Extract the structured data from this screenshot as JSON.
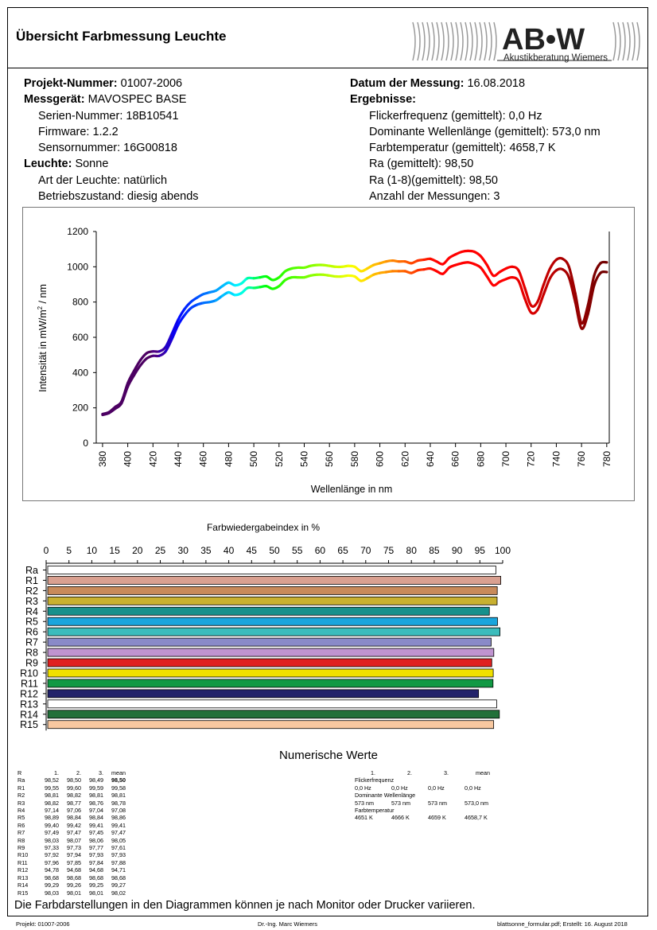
{
  "header": {
    "title": "Übersicht Farbmessung Leuchte",
    "logo_text": "AB•W",
    "logo_subtext": "Akustikberatung Wiemers"
  },
  "info_left": {
    "project_label": "Projekt-Nummer:",
    "project_value": " 01007-2006",
    "device_label": "Messgerät:",
    "device_value": " MAVOSPEC BASE",
    "serial": "Serien-Nummer: 18B10541",
    "firmware": "Firmware: 1.2.2",
    "sensor": "Sensornummer: 16G00818",
    "lamp_label": "Leuchte:",
    "lamp_value": " Sonne",
    "lamp_type": "Art der Leuchte: natürlich",
    "state": "Betriebszustand: diesig abends"
  },
  "info_right": {
    "date_label": "Datum der Messung:",
    "date_value": " 16.08.2018",
    "results_label": "Ergebnisse:",
    "flicker": "Flickerfrequenz (gemittelt): 0,0 Hz",
    "dominant": "Dominante Wellenlänge (gemittelt): 573,0 nm",
    "cct": "Farbtemperatur (gemittelt): 4658,7 K",
    "ra": "Ra (gemittelt): 98,50",
    "ra18": "Ra (1-8)(gemittelt): 98,50",
    "count": "Anzahl der Messungen: 3"
  },
  "chart_data": [
    {
      "type": "line",
      "xlabel": "Wellenlänge in nm",
      "ylabel": "Intensität in mW/m² / nm",
      "xlim": [
        375,
        782
      ],
      "ylim": [
        0,
        1200
      ],
      "xticks": [
        380,
        400,
        420,
        440,
        460,
        480,
        500,
        520,
        540,
        560,
        580,
        600,
        620,
        640,
        660,
        680,
        700,
        720,
        740,
        760,
        780
      ],
      "yticks": [
        0,
        200,
        400,
        600,
        800,
        1000,
        1200
      ],
      "grid": false,
      "x": [
        380,
        385,
        390,
        395,
        400,
        405,
        410,
        415,
        420,
        425,
        430,
        435,
        440,
        445,
        450,
        455,
        460,
        465,
        470,
        475,
        480,
        485,
        490,
        495,
        500,
        505,
        510,
        515,
        520,
        525,
        530,
        535,
        540,
        545,
        550,
        555,
        560,
        565,
        570,
        575,
        580,
        585,
        590,
        595,
        600,
        605,
        610,
        615,
        620,
        625,
        630,
        635,
        640,
        645,
        650,
        655,
        660,
        665,
        670,
        675,
        680,
        685,
        690,
        695,
        700,
        705,
        710,
        715,
        720,
        725,
        730,
        735,
        740,
        745,
        750,
        755,
        760,
        765,
        770,
        775,
        780
      ],
      "series": [
        {
          "values": [
            165,
            175,
            205,
            235,
            340,
            410,
            470,
            510,
            520,
            520,
            545,
            620,
            700,
            760,
            800,
            825,
            845,
            855,
            865,
            890,
            910,
            895,
            905,
            935,
            935,
            940,
            945,
            925,
            940,
            975,
            990,
            995,
            995,
            1005,
            1010,
            1010,
            1005,
            1000,
            1000,
            1005,
            1000,
            975,
            990,
            1010,
            1020,
            1030,
            1035,
            1030,
            1030,
            1020,
            1035,
            1040,
            1045,
            1030,
            1015,
            1050,
            1070,
            1085,
            1090,
            1085,
            1060,
            1010,
            950,
            970,
            990,
            1000,
            980,
            880,
            780,
            800,
            900,
            990,
            1040,
            1045,
            1000,
            850,
            680,
            780,
            950,
            1020,
            1025
          ]
        },
        {
          "values": [
            160,
            170,
            195,
            225,
            320,
            385,
            440,
            480,
            495,
            495,
            520,
            590,
            670,
            725,
            765,
            785,
            795,
            800,
            810,
            835,
            855,
            840,
            850,
            880,
            880,
            885,
            890,
            875,
            890,
            925,
            940,
            940,
            940,
            950,
            955,
            955,
            950,
            945,
            945,
            950,
            945,
            920,
            935,
            955,
            965,
            970,
            975,
            975,
            975,
            965,
            980,
            985,
            990,
            975,
            960,
            995,
            1010,
            1020,
            1025,
            1015,
            995,
            945,
            895,
            915,
            930,
            940,
            920,
            820,
            740,
            755,
            845,
            935,
            980,
            985,
            940,
            800,
            650,
            730,
            895,
            965,
            970
          ]
        }
      ]
    },
    {
      "type": "bar",
      "title": "Farbwiedergabeindex in %",
      "xlim": [
        0,
        100
      ],
      "xticks": [
        0,
        5,
        10,
        15,
        20,
        25,
        30,
        35,
        40,
        45,
        50,
        55,
        60,
        65,
        70,
        75,
        80,
        85,
        90,
        95,
        100
      ],
      "categories": [
        "Ra",
        "R1",
        "R2",
        "R3",
        "R4",
        "R5",
        "R6",
        "R7",
        "R8",
        "R9",
        "R10",
        "R11",
        "R12",
        "R13",
        "R14",
        "R15"
      ],
      "values": [
        98.5,
        99.58,
        98.81,
        98.78,
        97.08,
        98.86,
        99.41,
        97.47,
        98.05,
        97.61,
        97.93,
        97.88,
        94.71,
        98.68,
        99.27,
        98.02
      ],
      "colors": [
        "#ffffff",
        "#d9a090",
        "#c88a5a",
        "#c8b030",
        "#17908c",
        "#1aa5dc",
        "#3cbcbc",
        "#8a8ac8",
        "#c094d0",
        "#e02020",
        "#f0e000",
        "#119944",
        "#22226a",
        "#ffffff",
        "#22703a",
        "#f8c8a0"
      ]
    }
  ],
  "numeric": {
    "title": "Numerische Werte",
    "left_header": [
      "R",
      "1.",
      "2.",
      "3.",
      "mean"
    ],
    "left_rows": [
      [
        "Ra",
        "98,52",
        "98,50",
        "98,49",
        "98,50"
      ],
      [
        "R1",
        "99,55",
        "99,60",
        "99,59",
        "99,58"
      ],
      [
        "R2",
        "98,81",
        "98,82",
        "98,81",
        "98,81"
      ],
      [
        "R3",
        "98,82",
        "98,77",
        "98,76",
        "98,78"
      ],
      [
        "R4",
        "97,14",
        "97,06",
        "97,04",
        "97,08"
      ],
      [
        "R5",
        "98,89",
        "98,84",
        "98,84",
        "98,86"
      ],
      [
        "R6",
        "99,40",
        "99,42",
        "99,41",
        "99,41"
      ],
      [
        "R7",
        "97,49",
        "97,47",
        "97,45",
        "97,47"
      ],
      [
        "R8",
        "98,03",
        "98,07",
        "98,06",
        "98,05"
      ],
      [
        "R9",
        "97,33",
        "97,73",
        "97,77",
        "97,61"
      ],
      [
        "R10",
        "97,92",
        "97,94",
        "97,93",
        "97,93"
      ],
      [
        "R11",
        "97,96",
        "97,85",
        "97,84",
        "97,88"
      ],
      [
        "R12",
        "94,78",
        "94,68",
        "94,68",
        "94,71"
      ],
      [
        "R13",
        "98,68",
        "98,68",
        "98,68",
        "98,68"
      ],
      [
        "R14",
        "99,29",
        "99,26",
        "99,25",
        "99,27"
      ],
      [
        "R15",
        "98,03",
        "98,01",
        "98,01",
        "98,02"
      ]
    ],
    "right_header": [
      "1.",
      "2.",
      "3.",
      "mean"
    ],
    "flicker_label": "Flickerfrequenz",
    "flicker_row": [
      "0,0 Hz",
      "0,0 Hz",
      "0,0 Hz",
      "0,0 Hz"
    ],
    "dominant_label": "Dominante Wellenlänge",
    "dominant_row": [
      "573 nm",
      "573 nm",
      "573 nm",
      "573,0 nm"
    ],
    "cct_label": "Farbtemperatur",
    "cct_row": [
      "4651 K",
      "4666 K",
      "4659 K",
      "4658,7 K"
    ]
  },
  "note": "Die Farbdarstellungen in den Diagrammen können je nach Monitor oder Drucker variieren.",
  "footer": {
    "left": "Projekt: 01007-2006",
    "center": "Dr.-Ing. Marc Wiemers",
    "right": "blattsonne_formular.pdf; Erstellt: 16. August 2018"
  }
}
